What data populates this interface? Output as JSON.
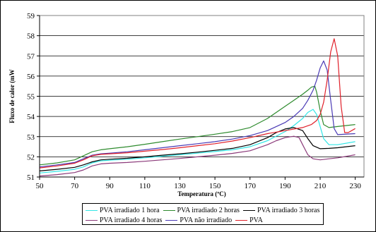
{
  "chart_data": {
    "type": "line",
    "title": "",
    "xlabel": "Temperatura (ºC)",
    "ylabel": "Fluxo de calor (mW",
    "xlim": [
      50,
      235
    ],
    "ylim": [
      51,
      59
    ],
    "xticks": [
      50,
      70,
      90,
      110,
      130,
      150,
      170,
      190,
      210,
      230
    ],
    "yticks": [
      51,
      52,
      53,
      54,
      55,
      56,
      57,
      58,
      59
    ],
    "grid": {
      "x": false,
      "y": true
    },
    "legend_position": "bottom",
    "series": [
      {
        "name": "PVA irradiado 1 hora",
        "color": "#33e6e6",
        "x": [
          50,
          60,
          70,
          75,
          80,
          85,
          90,
          100,
          110,
          120,
          130,
          140,
          150,
          160,
          170,
          180,
          190,
          195,
          200,
          203,
          206,
          208,
          210,
          212,
          215,
          220,
          230
        ],
        "y": [
          51.2,
          51.28,
          51.38,
          51.5,
          51.7,
          51.8,
          51.83,
          51.88,
          51.95,
          52.03,
          52.1,
          52.18,
          52.26,
          52.35,
          52.5,
          52.8,
          53.25,
          53.55,
          53.9,
          54.2,
          54.35,
          54.1,
          53.5,
          52.9,
          52.6,
          52.6,
          52.75
        ]
      },
      {
        "name": "PVA irradiado 2 horas",
        "color": "#2e8b2e",
        "x": [
          50,
          60,
          70,
          75,
          80,
          85,
          90,
          100,
          110,
          120,
          130,
          140,
          150,
          160,
          170,
          180,
          190,
          195,
          200,
          203,
          205,
          207,
          208,
          210,
          212,
          215,
          220,
          230
        ],
        "y": [
          51.6,
          51.7,
          51.85,
          52.05,
          52.25,
          52.35,
          52.4,
          52.5,
          52.62,
          52.75,
          52.88,
          53.0,
          53.12,
          53.25,
          53.45,
          53.9,
          54.5,
          54.8,
          55.1,
          55.3,
          55.45,
          55.5,
          55.2,
          54.3,
          53.6,
          53.45,
          53.5,
          53.6
        ]
      },
      {
        "name": "PVA irradiado 3 horas",
        "color": "#000000",
        "x": [
          50,
          60,
          70,
          75,
          80,
          85,
          90,
          100,
          110,
          120,
          130,
          140,
          150,
          160,
          170,
          180,
          185,
          190,
          195,
          200,
          203,
          206,
          210,
          215,
          220,
          230
        ],
        "y": [
          51.3,
          51.38,
          51.48,
          51.6,
          51.75,
          51.85,
          51.88,
          51.93,
          52.0,
          52.08,
          52.15,
          52.23,
          52.32,
          52.42,
          52.6,
          52.95,
          53.2,
          53.38,
          53.45,
          53.3,
          52.9,
          52.55,
          52.4,
          52.42,
          52.45,
          52.55
        ]
      },
      {
        "name": "PVA irradiado 4 horas",
        "color": "#8b3a7a",
        "x": [
          50,
          60,
          70,
          75,
          80,
          85,
          90,
          100,
          110,
          120,
          130,
          140,
          150,
          160,
          170,
          180,
          185,
          190,
          195,
          198,
          200,
          203,
          206,
          210,
          215,
          220,
          230
        ],
        "y": [
          51.05,
          51.12,
          51.22,
          51.35,
          51.55,
          51.65,
          51.68,
          51.72,
          51.78,
          51.85,
          51.92,
          52.0,
          52.08,
          52.17,
          52.3,
          52.6,
          52.8,
          52.95,
          53.02,
          52.95,
          52.6,
          52.1,
          51.9,
          51.85,
          51.9,
          51.95,
          52.1
        ]
      },
      {
        "name": "PVA não irradiado",
        "color": "#4a3ab5",
        "x": [
          50,
          60,
          70,
          75,
          80,
          85,
          90,
          100,
          110,
          120,
          130,
          140,
          150,
          160,
          170,
          180,
          190,
          195,
          200,
          203,
          206,
          208,
          210,
          212,
          214,
          216,
          218,
          220,
          230
        ],
        "y": [
          51.5,
          51.6,
          51.72,
          51.9,
          52.08,
          52.15,
          52.18,
          52.25,
          52.35,
          52.45,
          52.55,
          52.65,
          52.75,
          52.88,
          53.05,
          53.3,
          53.7,
          54.0,
          54.4,
          54.8,
          55.3,
          55.8,
          56.4,
          56.75,
          56.3,
          54.8,
          53.4,
          53.1,
          53.15
        ]
      },
      {
        "name": "PVA",
        "color": "#e0202a",
        "x": [
          50,
          60,
          70,
          75,
          80,
          85,
          90,
          100,
          110,
          120,
          130,
          140,
          150,
          160,
          170,
          180,
          190,
          200,
          205,
          208,
          210,
          212,
          214,
          216,
          218,
          220,
          222,
          224,
          226,
          230
        ],
        "y": [
          51.45,
          51.55,
          51.68,
          51.85,
          52.05,
          52.12,
          52.15,
          52.2,
          52.28,
          52.36,
          52.45,
          52.55,
          52.65,
          52.78,
          52.95,
          53.15,
          53.3,
          53.45,
          53.6,
          53.8,
          54.1,
          54.7,
          55.8,
          57.2,
          57.85,
          57.0,
          54.5,
          53.2,
          53.2,
          53.4
        ]
      }
    ]
  }
}
